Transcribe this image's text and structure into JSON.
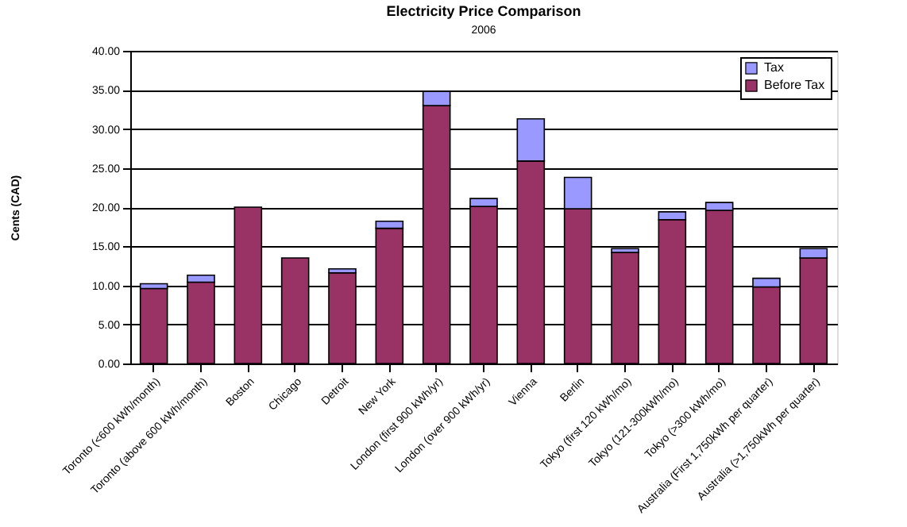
{
  "chart_data": {
    "type": "bar",
    "title": "Electricity Price Comparison",
    "subtitle": "2006",
    "ylabel": "Cents (CAD)",
    "categories": [
      "Toronto (<600 kWh/month)",
      "Toronto (above 600 kWh/month)",
      "Boston",
      "Chicago",
      "Detroit",
      "New York",
      "London (first 900 kWh/yr)",
      "London (over 900 kWh/yr)",
      "Vienna",
      "Berlin",
      "Tokyo (first 120 kWh/mo)",
      "Tokyo (121-300kWh/mo)",
      "Tokyo (>300 kWh/mo)",
      "Australia (First 1,750kWh per quarter)",
      "Australia (>1,750kWh per quarter)"
    ],
    "series": [
      {
        "name": "Before Tax",
        "color": "#993366",
        "values": [
          9.6,
          10.4,
          20.0,
          13.5,
          11.6,
          17.3,
          33.0,
          20.1,
          25.9,
          19.8,
          14.2,
          18.4,
          19.6,
          9.8,
          13.5
        ]
      },
      {
        "name": "Tax",
        "color": "#9999ff",
        "values": [
          0.6,
          0.9,
          null,
          null,
          0.5,
          0.9,
          1.8,
          1.0,
          5.4,
          4.0,
          0.5,
          1.0,
          1.0,
          1.1,
          1.2
        ]
      }
    ],
    "stacked": true,
    "ylim": [
      0,
      40
    ],
    "yticks": [
      {
        "value": 0,
        "label": "0.00"
      },
      {
        "value": 5,
        "label": "5.00"
      },
      {
        "value": 10,
        "label": "10.00"
      },
      {
        "value": 15,
        "label": "15.00"
      },
      {
        "value": 20,
        "label": "20.00"
      },
      {
        "value": 25,
        "label": "25.00"
      },
      {
        "value": 30,
        "label": "30.00"
      },
      {
        "value": 35,
        "label": "35.00"
      },
      {
        "value": 40,
        "label": "40.00"
      }
    ],
    "grid": "y",
    "legend": "top right"
  }
}
